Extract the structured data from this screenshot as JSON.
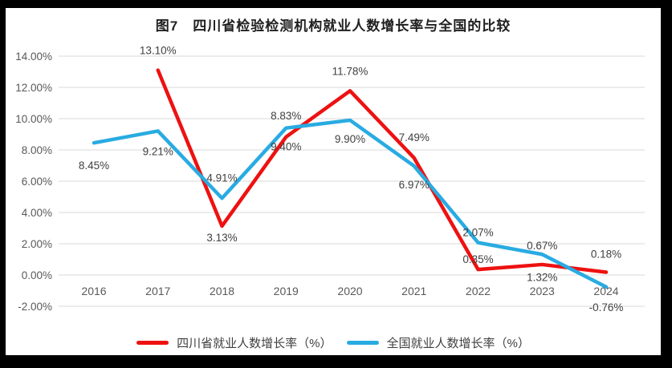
{
  "colors": {
    "frame": "#000000",
    "chart_background": "#ffffff",
    "gridline": "#d9d9d9",
    "axis_text": "#595959",
    "data_label_text": "#404040",
    "title_text": "#1f1f1f",
    "series_red": "#ee1111",
    "series_blue": "#29abe2"
  },
  "chart_data": {
    "type": "line",
    "title": "图7　四川省检验检测机构就业人数增长率与全国的比较",
    "categories": [
      "2016",
      "2017",
      "2018",
      "2019",
      "2020",
      "2021",
      "2022",
      "2023",
      "2024"
    ],
    "series": [
      {
        "id": "sichuan",
        "name": "四川省就业人数增长率（%）",
        "color": "#ee1111",
        "values": [
          null,
          13.1,
          3.13,
          8.83,
          11.78,
          7.49,
          0.35,
          0.67,
          0.18
        ],
        "point_labels": [
          "",
          "13.10%",
          "3.13%",
          "8.83%",
          "11.78%",
          "7.49%",
          "0.35%",
          "0.67%",
          "0.18%"
        ],
        "label_dy": [
          0,
          -20,
          19,
          -22,
          -20,
          -21,
          -8,
          -19,
          -18
        ]
      },
      {
        "id": "national",
        "name": "全国就业人数增长率（%）",
        "color": "#29abe2",
        "values": [
          8.45,
          9.21,
          4.91,
          9.4,
          9.9,
          6.97,
          2.07,
          1.32,
          -0.76
        ],
        "point_labels": [
          "8.45%",
          "9.21%",
          "4.91%",
          "9.40%",
          "9.90%",
          "6.97%",
          "2.07%",
          "1.32%",
          "-0.76%"
        ],
        "label_dy": [
          33,
          30,
          -21,
          28,
          28,
          28,
          -8,
          33,
          30
        ]
      }
    ],
    "y_ticks": [
      {
        "value": 14,
        "label": "14.00%"
      },
      {
        "value": 12,
        "label": "12.00%"
      },
      {
        "value": 10,
        "label": "10.00%"
      },
      {
        "value": 8,
        "label": "8.00%"
      },
      {
        "value": 6,
        "label": "6.00%"
      },
      {
        "value": 4,
        "label": "4.00%"
      },
      {
        "value": 2,
        "label": "2.00%"
      },
      {
        "value": 0,
        "label": "0.00%"
      },
      {
        "value": -2,
        "label": "-2.00%"
      }
    ],
    "ylim": [
      -2,
      14
    ],
    "grid": true,
    "legend_position": "bottom"
  }
}
